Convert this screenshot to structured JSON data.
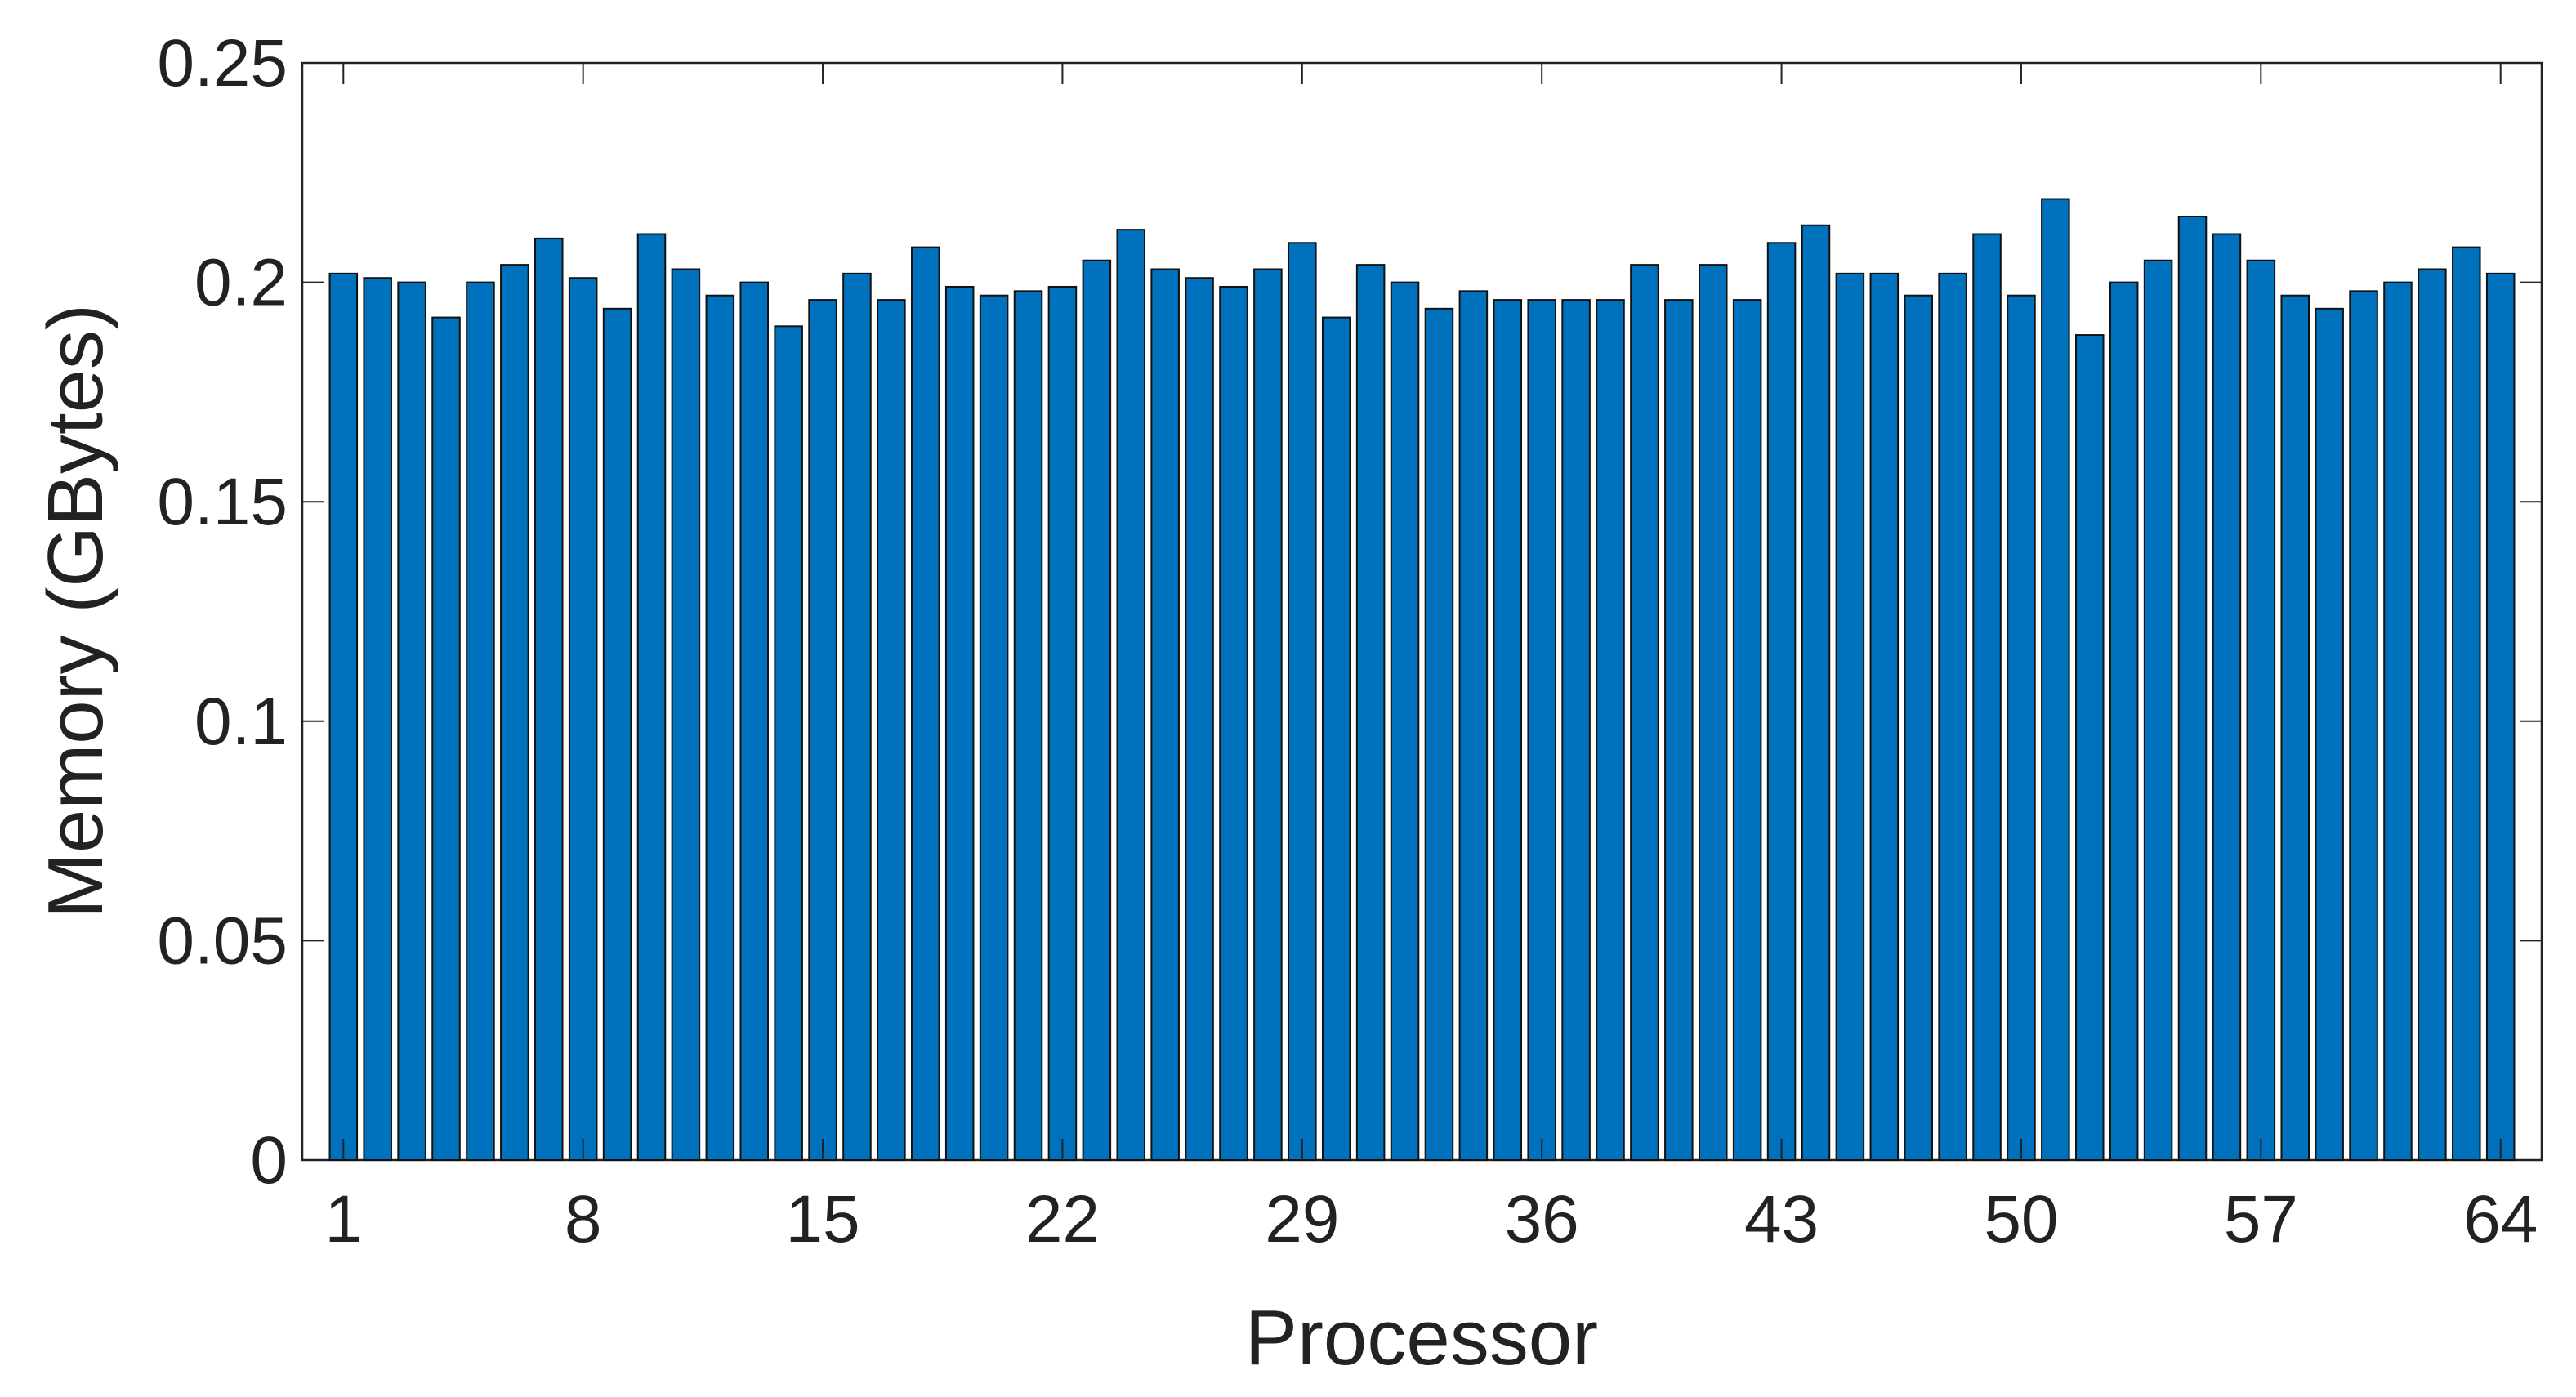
{
  "chart_data": {
    "type": "bar",
    "xlabel": "Processor",
    "ylabel": "Memory (GBytes)",
    "x": [
      1,
      2,
      3,
      4,
      5,
      6,
      7,
      8,
      9,
      10,
      11,
      12,
      13,
      14,
      15,
      16,
      17,
      18,
      19,
      20,
      21,
      22,
      23,
      24,
      25,
      26,
      27,
      28,
      29,
      30,
      31,
      32,
      33,
      34,
      35,
      36,
      37,
      38,
      39,
      40,
      41,
      42,
      43,
      44,
      45,
      46,
      47,
      48,
      49,
      50,
      51,
      52,
      53,
      54,
      55,
      56,
      57,
      58,
      59,
      60,
      61,
      62,
      63,
      64
    ],
    "values": [
      0.202,
      0.201,
      0.2,
      0.192,
      0.2,
      0.204,
      0.21,
      0.201,
      0.194,
      0.211,
      0.203,
      0.197,
      0.2,
      0.19,
      0.196,
      0.202,
      0.196,
      0.208,
      0.199,
      0.197,
      0.198,
      0.199,
      0.205,
      0.212,
      0.203,
      0.201,
      0.199,
      0.203,
      0.209,
      0.192,
      0.204,
      0.2,
      0.194,
      0.198,
      0.196,
      0.196,
      0.196,
      0.196,
      0.204,
      0.196,
      0.204,
      0.196,
      0.209,
      0.213,
      0.202,
      0.202,
      0.197,
      0.202,
      0.211,
      0.197,
      0.219,
      0.188,
      0.2,
      0.205,
      0.215,
      0.211,
      0.205,
      0.197,
      0.194,
      0.198,
      0.2,
      0.203,
      0.208,
      0.202
    ],
    "color": "#0072BD",
    "xlim": [
      -0.2,
      65.2
    ],
    "xticks": [
      1,
      8,
      15,
      22,
      29,
      36,
      43,
      50,
      57,
      64
    ],
    "ylim": [
      0,
      0.25
    ],
    "yticks": [
      0,
      0.05,
      0.1,
      0.15,
      0.2,
      0.25
    ]
  }
}
